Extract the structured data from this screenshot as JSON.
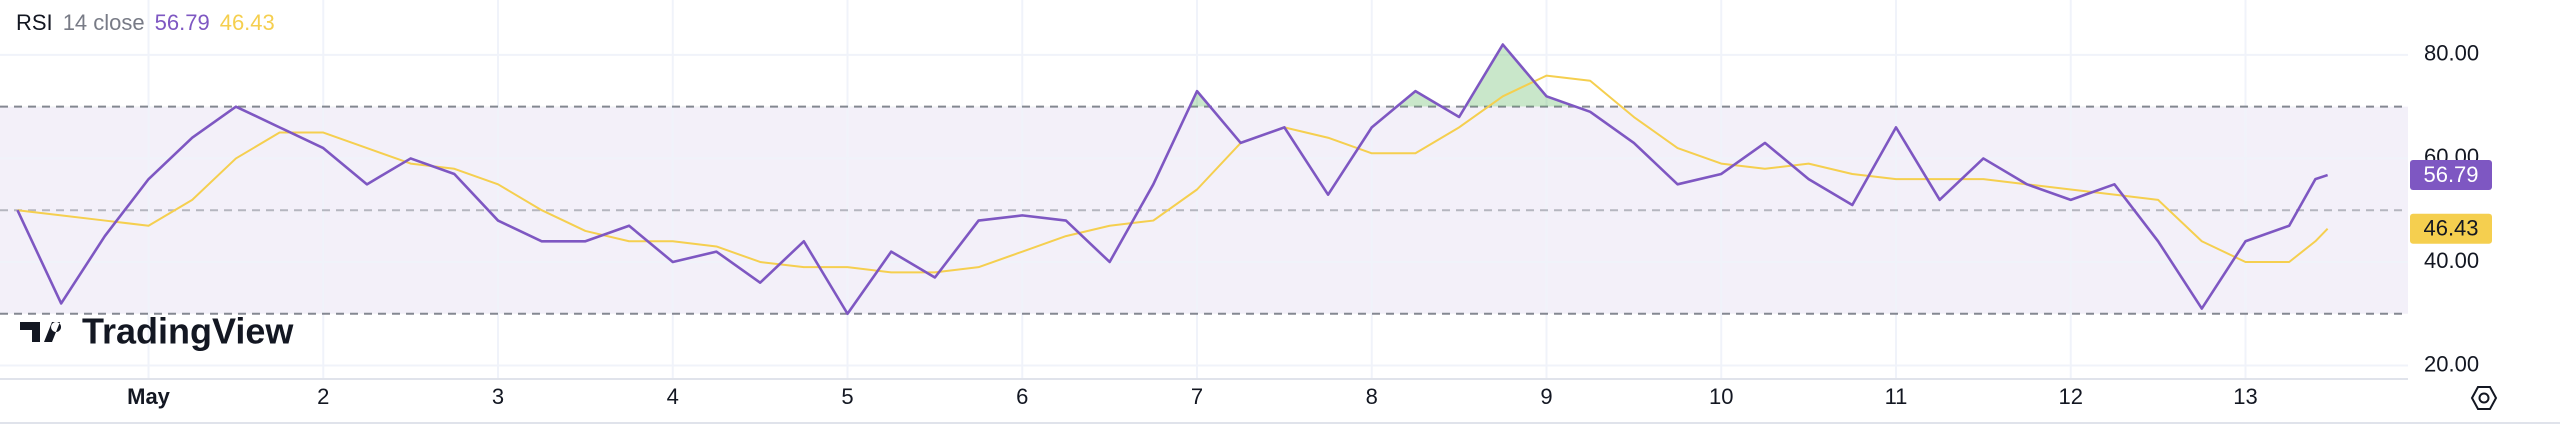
{
  "chart_data": {
    "type": "line",
    "title": "RSI",
    "subtitle": "14 close",
    "logo": "TradingView",
    "x": [
      0.25,
      0.5,
      0.75,
      1.0,
      1.25,
      1.5,
      1.75,
      2.0,
      2.25,
      2.5,
      2.75,
      3.0,
      3.25,
      3.5,
      3.75,
      4.0,
      4.25,
      4.5,
      4.75,
      5.0,
      5.25,
      5.5,
      5.75,
      6.0,
      6.25,
      6.5,
      6.75,
      7.0,
      7.25,
      7.5,
      7.75,
      8.0,
      8.25,
      8.5,
      8.75,
      9.0,
      9.25,
      9.5,
      9.75,
      10.0,
      10.25,
      10.5,
      10.75,
      11.0,
      11.25,
      11.5,
      11.75,
      12.0,
      12.25,
      12.5,
      12.75,
      13.0,
      13.25,
      13.4,
      13.47
    ],
    "series": [
      {
        "color": "#7e57c2",
        "values": [
          50,
          32,
          45,
          56,
          64,
          70,
          66,
          62,
          55,
          60,
          57,
          48,
          44,
          44,
          47,
          40,
          42,
          36,
          44,
          30,
          42,
          37,
          48,
          49,
          48,
          40,
          55,
          73,
          63,
          66,
          53,
          66,
          73,
          68,
          82,
          72,
          69,
          63,
          55,
          57,
          63,
          56,
          51,
          66,
          52,
          60,
          55,
          52,
          55,
          44,
          31,
          44,
          47,
          56,
          56.79
        ]
      },
      {
        "color": "#f5cf4f",
        "values": [
          50,
          49,
          48,
          47,
          52,
          60,
          65,
          65,
          62,
          59,
          58,
          55,
          50,
          46,
          44,
          44,
          43,
          40,
          39,
          39,
          38,
          38,
          39,
          42,
          45,
          47,
          48,
          54,
          63,
          66,
          64,
          61,
          61,
          66,
          72,
          76,
          75,
          68,
          62,
          59,
          58,
          59,
          57,
          56,
          56,
          56,
          55,
          54,
          53,
          52,
          44,
          40,
          40,
          44,
          46.43
        ]
      }
    ],
    "bands": {
      "upper": 70,
      "middle": 50,
      "lower": 30,
      "fill": "#7e57c2",
      "overbought_color": "#4caf50"
    },
    "xlim": [
      0.15,
      13.93
    ],
    "xticks": [
      {
        "value": 1,
        "label": "May"
      },
      2,
      3,
      4,
      5,
      6,
      7,
      8,
      9,
      10,
      11,
      12,
      13
    ],
    "ylim": [
      17.4,
      90.6
    ],
    "yticks": [
      {
        "value": 20,
        "label": "20.00"
      },
      {
        "value": 40,
        "label": "40.00"
      },
      {
        "value": 60,
        "label": "60.00"
      },
      {
        "value": 80,
        "label": "80.00"
      }
    ],
    "grid": true
  }
}
